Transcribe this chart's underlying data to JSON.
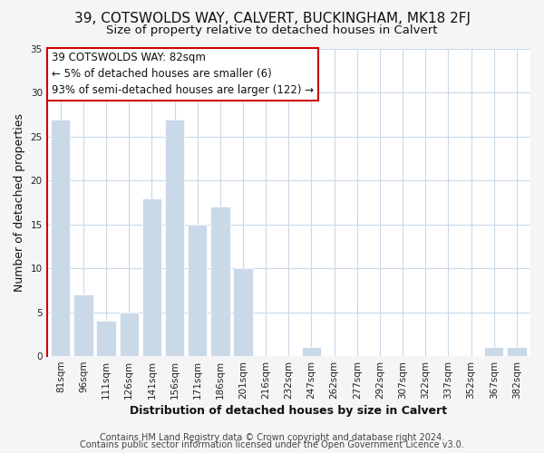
{
  "title": "39, COTSWOLDS WAY, CALVERT, BUCKINGHAM, MK18 2FJ",
  "subtitle": "Size of property relative to detached houses in Calvert",
  "xlabel": "Distribution of detached houses by size in Calvert",
  "ylabel": "Number of detached properties",
  "footer_line1": "Contains HM Land Registry data © Crown copyright and database right 2024.",
  "footer_line2": "Contains public sector information licensed under the Open Government Licence v3.0.",
  "bar_labels": [
    "81sqm",
    "96sqm",
    "111sqm",
    "126sqm",
    "141sqm",
    "156sqm",
    "171sqm",
    "186sqm",
    "201sqm",
    "216sqm",
    "232sqm",
    "247sqm",
    "262sqm",
    "277sqm",
    "292sqm",
    "307sqm",
    "322sqm",
    "337sqm",
    "352sqm",
    "367sqm",
    "382sqm"
  ],
  "bar_values": [
    27,
    7,
    4,
    5,
    18,
    27,
    15,
    17,
    10,
    0,
    0,
    1,
    0,
    0,
    0,
    0,
    0,
    0,
    0,
    1,
    1
  ],
  "bar_color": "#c9d9e8",
  "ann_line1": "39 COTSWOLDS WAY: 82sqm",
  "ann_line2": "← 5% of detached houses are smaller (6)",
  "ann_line3": "93% of semi-detached houses are larger (122) →",
  "ylim": [
    0,
    35
  ],
  "yticks": [
    0,
    5,
    10,
    15,
    20,
    25,
    30,
    35
  ],
  "fig_bg": "#f5f5f5",
  "plot_bg": "#ffffff",
  "grid_color": "#c9d9e8",
  "title_fontsize": 11,
  "subtitle_fontsize": 9.5,
  "axis_label_fontsize": 9,
  "tick_fontsize": 7.5,
  "footer_fontsize": 7.0,
  "ann_fontsize": 8.5
}
